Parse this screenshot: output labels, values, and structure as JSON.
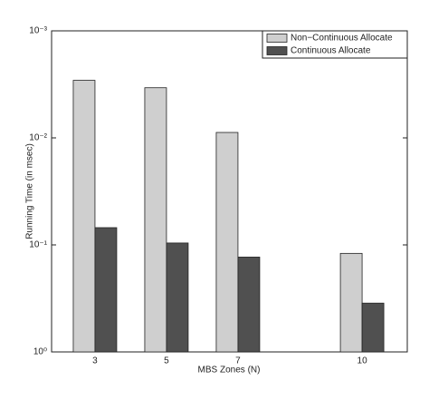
{
  "chart_data": {
    "type": "bar",
    "x_label": "MBS Zones (N)",
    "y_label": "Running Time (in msec)",
    "categories": [
      "3",
      "5",
      "7",
      "10"
    ],
    "series": [
      {
        "name": "Non−Continuous Allocate",
        "color": "#cfcfcf",
        "values": [
          0.0029,
          0.0034,
          0.0089,
          0.12
        ]
      },
      {
        "name": "Continuous Allocate",
        "color": "#505050",
        "values": [
          0.069,
          0.096,
          0.13,
          0.35
        ]
      }
    ],
    "log_y": true,
    "ylim": [
      1,
      0.001
    ],
    "yticks": [
      {
        "value": 0.001,
        "label": "10⁻³"
      },
      {
        "value": 0.01,
        "label": "10⁻²"
      },
      {
        "value": 0.1,
        "label": "10⁻¹"
      },
      {
        "value": 1,
        "label": "10⁰"
      }
    ],
    "legend": "upper right"
  }
}
